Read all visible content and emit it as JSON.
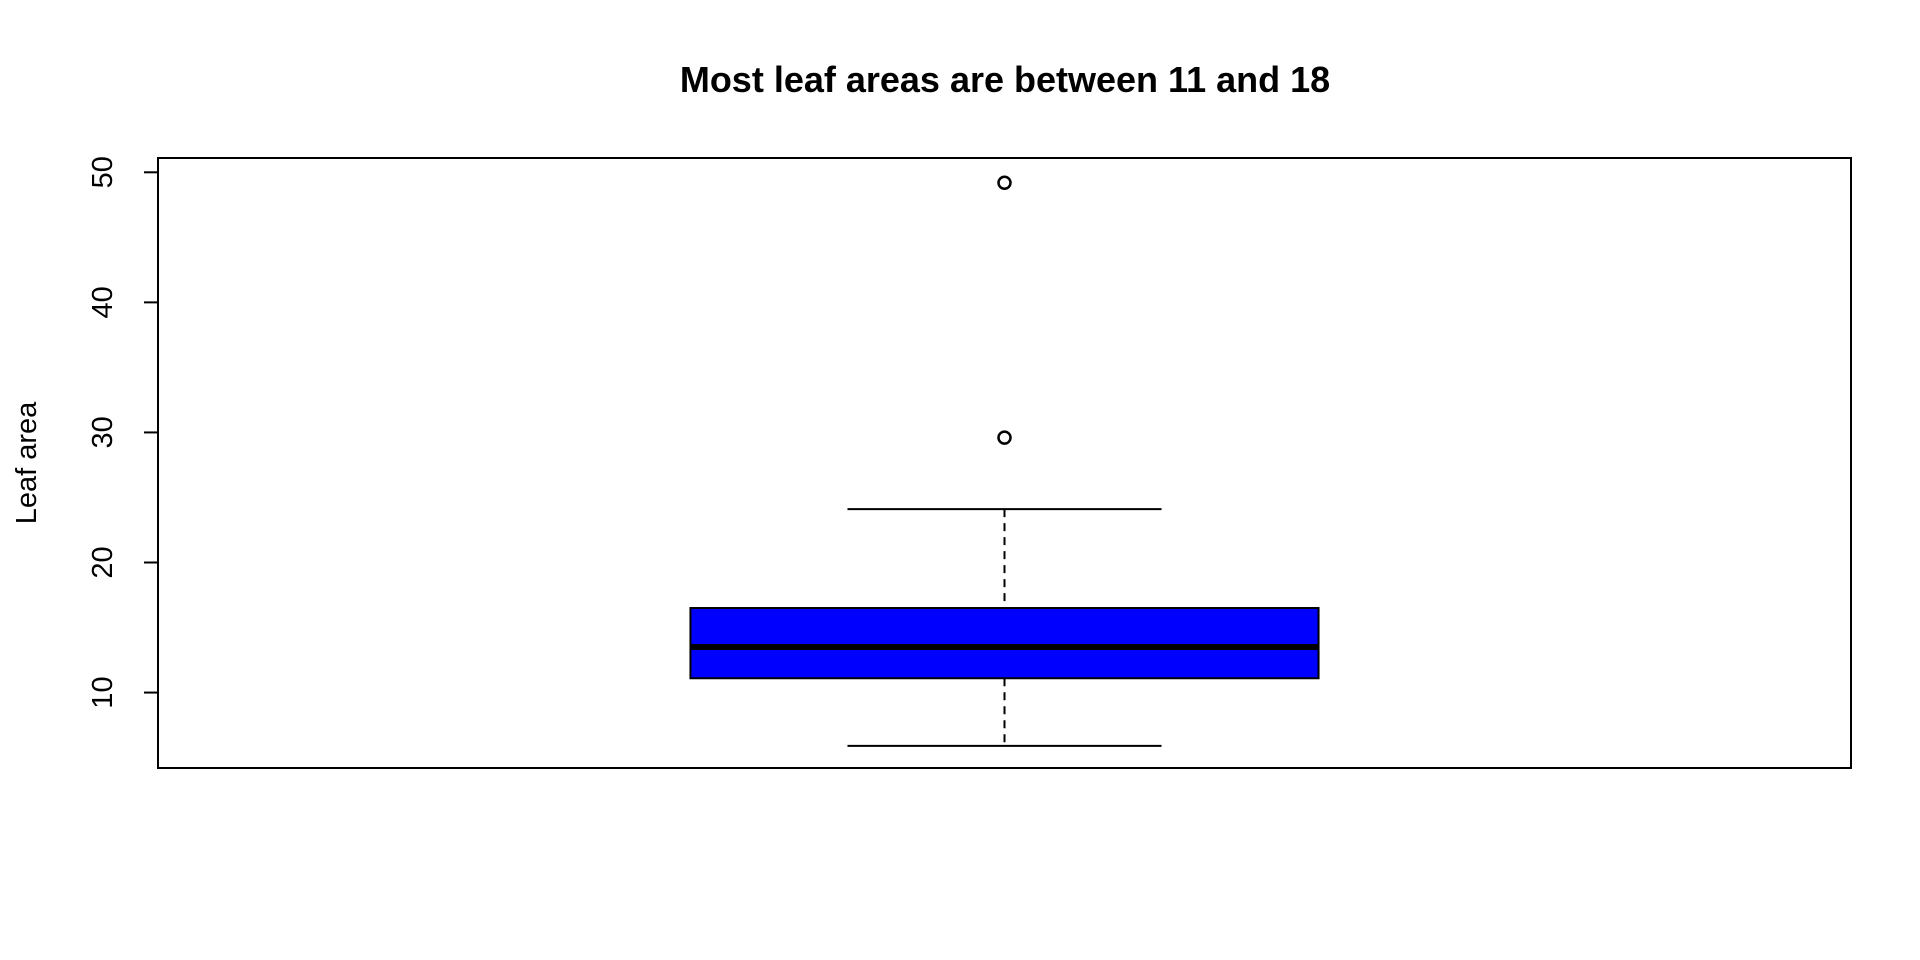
{
  "chart_data": {
    "type": "box",
    "title": "Most leaf areas are between 11 and 18",
    "xlabel": "",
    "ylabel": "Leaf area",
    "ylim": [
      4.2,
      51.1
    ],
    "yticks": [
      "10",
      "20",
      "30",
      "40",
      "50"
    ],
    "grid": false,
    "boxes": [
      {
        "min": 5.9,
        "q1": 11.1,
        "median": 13.5,
        "q3": 16.5,
        "max": 24.1,
        "outliers": [
          29.6,
          49.2
        ],
        "fill": "#0000ff"
      }
    ]
  }
}
